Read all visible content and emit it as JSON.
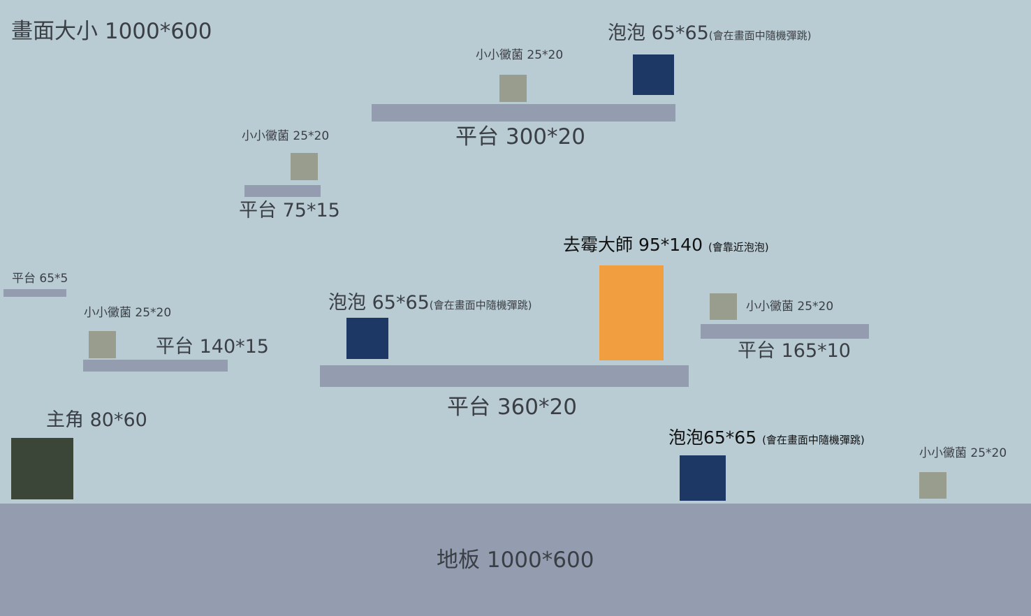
{
  "screen_label": "畫面大小 1000*600",
  "floor": {
    "label": "地板 1000*600",
    "color": "#949caf"
  },
  "platforms": {
    "p300": "平台 300*20",
    "p75": "平台 75*15",
    "p65": "平台 65*5",
    "p140": "平台 140*15",
    "p360": "平台 360*20",
    "p165": "平台 165*10",
    "color": "#949caf"
  },
  "germs": {
    "label": "小小黴菌 25*20",
    "color": "#999d8d"
  },
  "bubbles": {
    "top_label": "泡泡 65*65",
    "mid_label": "泡泡 65*65",
    "bottom_label": "泡泡65*65",
    "note": "(會在畫面中隨機彈跳)",
    "color": "#1e3866"
  },
  "hero": {
    "label": "主角 80*60",
    "color": "#3b4538"
  },
  "master": {
    "label": "去霉大師 95*140",
    "note": "(會靠近泡泡)",
    "color": "#f09e3f"
  }
}
